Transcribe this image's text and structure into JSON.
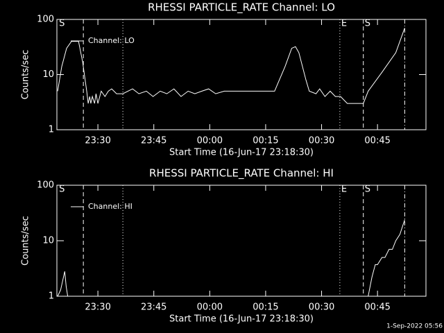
{
  "chart_data": [
    {
      "type": "line",
      "title": "RHESSI PARTICLE_RATE Channel: LO",
      "xlabel": "Start Time (16-Jun-17 23:18:30)",
      "ylabel": "Counts/sec",
      "log_y": true,
      "ylim": [
        1,
        100
      ],
      "yticks": [
        1,
        10,
        100
      ],
      "xlim": [
        0.5,
        99.5
      ],
      "xticks": [
        {
          "value": 11.5,
          "label": "23:30"
        },
        {
          "value": 26.5,
          "label": "23:45"
        },
        {
          "value": 41.5,
          "label": "00:00"
        },
        {
          "value": 56.5,
          "label": "00:15"
        },
        {
          "value": 71.5,
          "label": "00:30"
        },
        {
          "value": 86.5,
          "label": "00:45"
        }
      ],
      "legend": "upper left",
      "markers": [
        {
          "x": 7.6,
          "style": "dashed"
        },
        {
          "x": 18.2,
          "style": "dotted"
        },
        {
          "x": 76.4,
          "style": "dotted"
        },
        {
          "x": 82.7,
          "style": "dashed"
        },
        {
          "x": 93.8,
          "style": "dashdot"
        }
      ],
      "annotations": [
        {
          "text": "S",
          "x": 0.7
        },
        {
          "text": "E",
          "x": 76.4
        },
        {
          "text": "S",
          "x": 82.7
        }
      ],
      "series": [
        {
          "name": "Channel: LO",
          "color": "#ffffff",
          "x": [
            0.7,
            1.8,
            3.1,
            4.4,
            6.3,
            7.4,
            8.5,
            8.9,
            9.3,
            9.6,
            10.0,
            10.6,
            11.0,
            11.5,
            12.0,
            12.4,
            13.4,
            14.3,
            15.2,
            16.5,
            18.2,
            20.8,
            22.5,
            24.5,
            26.3,
            28.2,
            30.0,
            31.9,
            33.8,
            35.7,
            37.5,
            39.4,
            41.2,
            43.1,
            45.4,
            47.7,
            52.4,
            58.9,
            59.8,
            61.7,
            63.5,
            64.5,
            65.4,
            67.3,
            68.2,
            70.0,
            71.0,
            72.4,
            73.8,
            75.2,
            76.6,
            78.4,
            80.0,
            81.2,
            82.7,
            84.0,
            87.7,
            91.4,
            93.8
          ],
          "values": [
            5,
            14,
            30,
            40,
            40,
            17,
            5,
            3,
            4,
            3,
            4,
            3,
            4.5,
            3,
            4,
            5,
            4,
            5,
            5.5,
            4.5,
            4.5,
            5.5,
            4.5,
            5,
            4,
            5,
            4.5,
            5.5,
            4,
            5,
            4.5,
            5,
            5.5,
            4.5,
            5,
            5,
            5,
            5,
            7,
            14,
            30,
            32,
            25,
            8,
            5,
            4.5,
            5.5,
            4,
            5,
            4,
            4,
            3,
            3,
            3,
            3,
            5,
            11,
            25,
            70
          ]
        }
      ]
    },
    {
      "type": "line",
      "title": "RHESSI PARTICLE_RATE Channel: HI",
      "xlabel": "Start Time (16-Jun-17 23:18:30)",
      "ylabel": "Counts/sec",
      "log_y": true,
      "ylim": [
        1,
        100
      ],
      "yticks": [
        1,
        10,
        100
      ],
      "xlim": [
        0.5,
        99.5
      ],
      "xticks": [
        {
          "value": 11.5,
          "label": "23:30"
        },
        {
          "value": 26.5,
          "label": "23:45"
        },
        {
          "value": 41.5,
          "label": "00:00"
        },
        {
          "value": 56.5,
          "label": "00:15"
        },
        {
          "value": 71.5,
          "label": "00:30"
        },
        {
          "value": 86.5,
          "label": "00:45"
        }
      ],
      "legend": "upper left",
      "markers": [
        {
          "x": 7.6,
          "style": "dashed"
        },
        {
          "x": 18.2,
          "style": "dotted"
        },
        {
          "x": 76.4,
          "style": "dotted"
        },
        {
          "x": 82.7,
          "style": "dashed"
        },
        {
          "x": 93.8,
          "style": "dashdot"
        }
      ],
      "annotations": [
        {
          "text": "S",
          "x": 0.7
        },
        {
          "text": "E",
          "x": 76.4
        },
        {
          "text": "S",
          "x": 82.7
        }
      ],
      "series": [
        {
          "name": "Channel: HI",
          "color": "#ffffff",
          "x": [
            0.7,
            1.5,
            1.8,
            2.6,
            3.0,
            3.4,
            40.0,
            84.0,
            85.0,
            85.9,
            86.5,
            87.7,
            88.5,
            89.6,
            90.5,
            91.4,
            92.5,
            93.8
          ],
          "values": [
            1,
            1.3,
            1.6,
            2.8,
            1.5,
            1,
            null,
            1,
            2.2,
            3.7,
            3.7,
            5,
            5,
            7,
            7,
            10,
            13,
            24
          ]
        }
      ]
    }
  ],
  "timestamp": "1-Sep-2022 05:56"
}
